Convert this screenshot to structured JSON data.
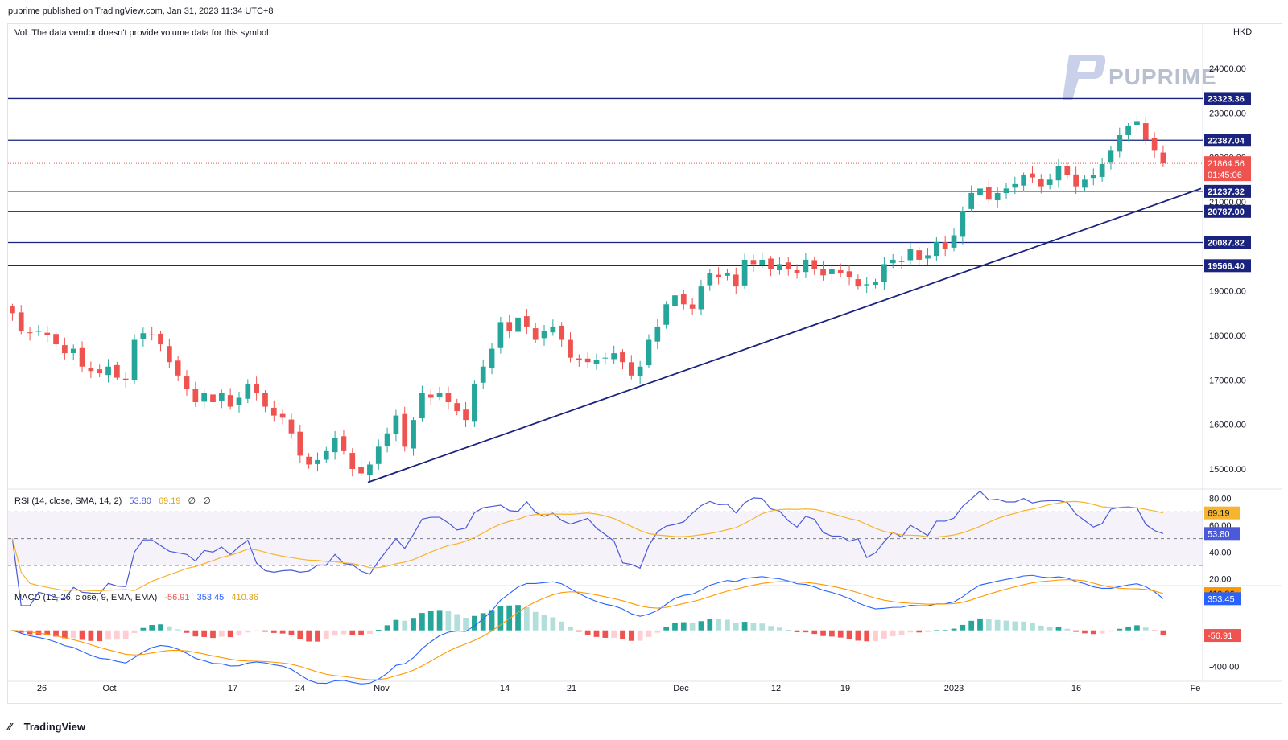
{
  "header": {
    "published": "puprime published on TradingView.com, Jan 31, 2023 11:34 UTC+8"
  },
  "volume_note": "Vol: The data vendor doesn't provide volume data for this symbol.",
  "currency": "HKD",
  "brand": {
    "watermark": "PUPRIME",
    "footer": "TradingView"
  },
  "colors": {
    "up": "#26a69a",
    "down": "#ef5350",
    "line": "#1a237e",
    "rsi": "#4a5ad9",
    "rsi_ma": "#f5b52e",
    "macd": "#2962ff",
    "signal": "#ff9800"
  },
  "rsi": {
    "label": "RSI (14, close, SMA, 14, 2)",
    "value": "53.80",
    "ma_value": "69.19",
    "extra1": "∅",
    "extra2": "∅"
  },
  "macd": {
    "label": "MACD (12, 26, close, 9, EMA, EMA)",
    "histogram": "-56.91",
    "macd": "353.45",
    "signal": "410.36"
  },
  "price_badges": {
    "current": "21864.56",
    "countdown": "01:45:06"
  },
  "chart_data": [
    {
      "type": "candlestick",
      "symbol_currency": "HKD",
      "ylim": [
        14700,
        24600
      ],
      "y_ticks": [
        "24000.00",
        "23000.00",
        "22000.00",
        "21000.00",
        "19000.00",
        "18000.00",
        "17000.00",
        "16000.00",
        "15000.00"
      ],
      "x_ticks": [
        "26",
        "Oct",
        "17",
        "24",
        "Nov",
        "14",
        "21",
        "Dec",
        "12",
        "19",
        "2023",
        "16",
        "Fe"
      ],
      "horizontal_levels": [
        "23323.36",
        "22387.04",
        "21237.32",
        "20787.00",
        "20087.82",
        "19566.40"
      ],
      "trendline": {
        "from": {
          "date": "2022-10-31",
          "price": 14700
        },
        "to": {
          "date": "2023-01-30",
          "price": 21300
        }
      },
      "last_price": 21864.56,
      "closes": [
        18500,
        18100,
        18050,
        18100,
        18000,
        17800,
        17600,
        17700,
        17300,
        17200,
        17150,
        17300,
        17050,
        17000,
        17900,
        18050,
        18000,
        17800,
        17400,
        17100,
        16800,
        16500,
        16700,
        16500,
        16700,
        16400,
        16600,
        16900,
        16700,
        16400,
        16200,
        16150,
        15800,
        15300,
        15100,
        15200,
        15400,
        15700,
        15400,
        15000,
        14900,
        15100,
        15500,
        15800,
        16200,
        15500,
        16100,
        16700,
        16600,
        16700,
        16500,
        16300,
        16100,
        16900,
        17300,
        17700,
        18300,
        18100,
        18400,
        18200,
        17900,
        18100,
        18200,
        17900,
        17500,
        17450,
        17400,
        17450,
        17500,
        17600,
        17400,
        17100,
        17300,
        17900,
        18200,
        18700,
        18900,
        18700,
        18600,
        19100,
        19400,
        19300,
        19400,
        19100,
        19700,
        19600,
        19700,
        19500,
        19600,
        19500,
        19400,
        19700,
        19500,
        19350,
        19500,
        19400,
        19300,
        19100,
        19150,
        19200,
        19600,
        19700,
        19650,
        19950,
        19700,
        19800,
        20100,
        19950,
        20250,
        20800,
        21200,
        21300,
        21050,
        21200,
        21300,
        21400,
        21600,
        21550,
        21350,
        21500,
        21800,
        21600,
        21350,
        21500,
        21600,
        21850,
        22150,
        22500,
        22700,
        22800,
        22400,
        22150,
        21864.56
      ]
    },
    {
      "type": "line",
      "name": "RSI (14, close, SMA, 14, 2)",
      "ylim": [
        15,
        87
      ],
      "y_ticks": [
        "80.00",
        "60.00",
        "40.00",
        "20.00"
      ],
      "levels": [
        70,
        50,
        30
      ],
      "series": [
        {
          "name": "RSI",
          "last": 53.8
        },
        {
          "name": "RSI-based MA",
          "last": 69.19
        }
      ]
    },
    {
      "type": "bar",
      "name": "MACD (12, 26, close, 9, EMA, EMA)",
      "ylim": [
        -550,
        500
      ],
      "y_ticks": [
        "-400.00"
      ],
      "series": [
        {
          "name": "Histogram",
          "last": -56.91
        },
        {
          "name": "MACD",
          "last": 353.45
        },
        {
          "name": "Signal",
          "last": 410.36
        }
      ]
    }
  ]
}
